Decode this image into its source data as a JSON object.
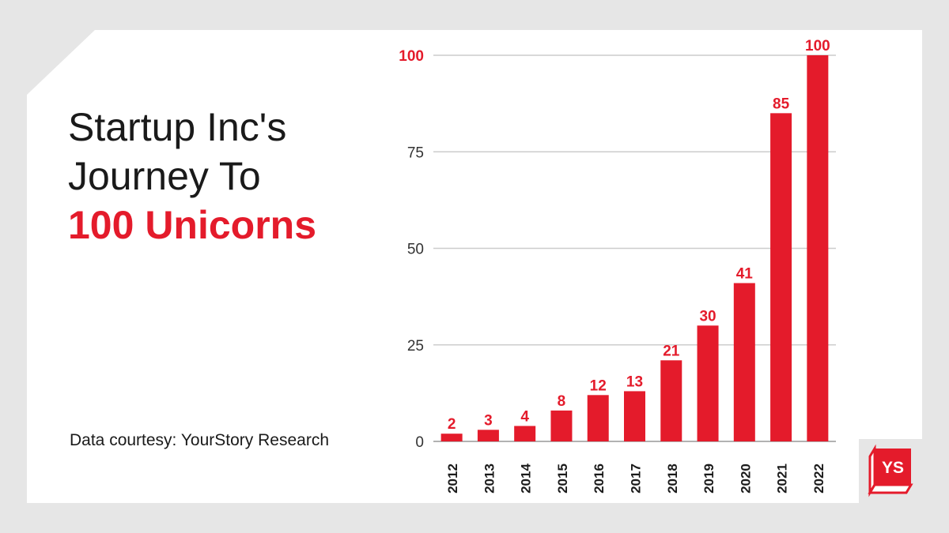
{
  "headline": {
    "line1": "Startup Inc's",
    "line2": "Journey To",
    "line3": "100 Unicorns"
  },
  "credit": "Data courtesy: YourStory Research",
  "logo": {
    "text": "YS",
    "icon": "yourstory-cube-logo"
  },
  "colors": {
    "accent": "#e41b2b",
    "text": "#1a1a1a",
    "grid": "#cccccc",
    "background": "#e6e6e6"
  },
  "chart_data": {
    "type": "bar",
    "title": "Startup Inc's Journey To 100 Unicorns",
    "xlabel": "",
    "ylabel": "",
    "categories": [
      "2012",
      "2013",
      "2014",
      "2015",
      "2016",
      "2017",
      "2018",
      "2019",
      "2020",
      "2021",
      "2022"
    ],
    "values": [
      2,
      3,
      4,
      8,
      12,
      13,
      21,
      30,
      41,
      85,
      100
    ],
    "ylim": [
      0,
      100
    ],
    "yticks": [
      0,
      25,
      50,
      75,
      100
    ],
    "grid": true,
    "legend": "none"
  }
}
